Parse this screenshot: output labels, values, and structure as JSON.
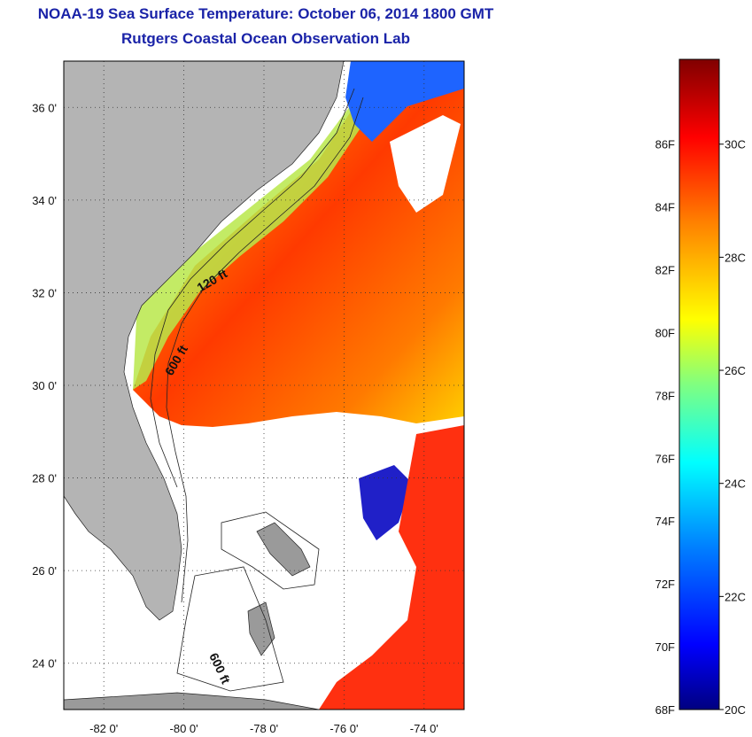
{
  "header": {
    "title": "NOAA-19 Sea Surface Temperature:  October 06, 2014 1800 GMT",
    "subtitle": "Rutgers Coastal Ocean Observation Lab"
  },
  "map": {
    "lat_labels": [
      "36 0'",
      "34 0'",
      "32 0'",
      "30 0'",
      "28 0'",
      "26 0'",
      "24 0'"
    ],
    "lon_labels": [
      "-82 0'",
      "-80 0'",
      "-78 0'",
      "-76 0'",
      "-74 0'"
    ],
    "lat_range": [
      23,
      37
    ],
    "lon_range": [
      -83,
      -73
    ],
    "contours": {
      "label_120": "120 ft",
      "label_600a": "600 ft",
      "label_600b": "600 ft"
    },
    "colors": {
      "land": "#b4b4b4",
      "cloud": "#ffffff",
      "contour": "#222222"
    }
  },
  "colorbar": {
    "fahrenheit_ticks": [
      "86F",
      "84F",
      "82F",
      "80F",
      "78F",
      "76F",
      "74F",
      "72F",
      "70F",
      "68F"
    ],
    "celsius_ticks": [
      "30C",
      "28C",
      "26C",
      "24C",
      "22C",
      "20C"
    ],
    "min_c": 20,
    "max_c": 31.5,
    "colormap": [
      "#000080",
      "#0000ff",
      "#0080ff",
      "#00ffff",
      "#80ff80",
      "#ffff00",
      "#ff8000",
      "#ff0000",
      "#800000"
    ]
  }
}
